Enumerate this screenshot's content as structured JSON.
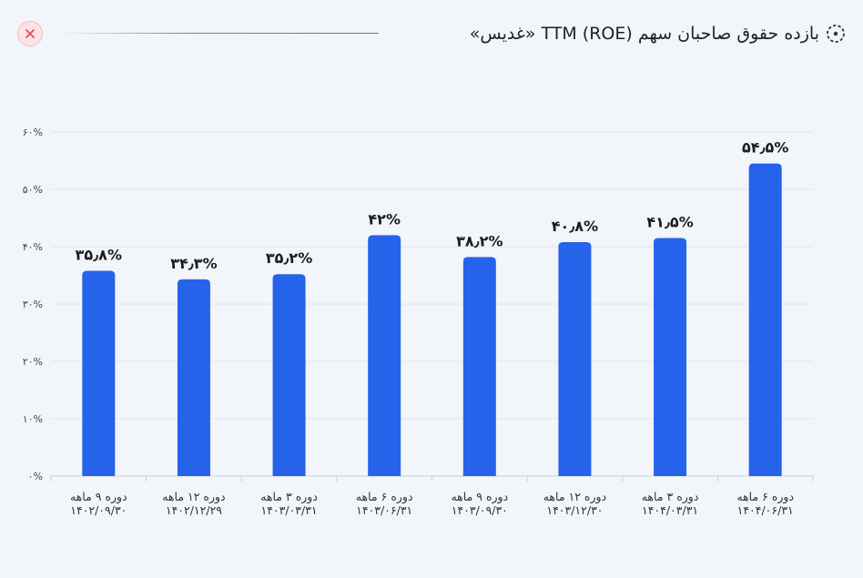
{
  "header": {
    "title": "بازده حقوق صاحبان سهم TTM (ROE) «غدیس»",
    "close_icon": "close-icon",
    "title_icon": "dotted-circle-icon"
  },
  "colors": {
    "bar": "#2563eb",
    "background": "#f2f5fa",
    "close_bg": "#fde3e6",
    "close_icon": "#e84c5f"
  },
  "chart_data": {
    "type": "bar",
    "title": "",
    "xlabel": "",
    "ylabel": "",
    "ylim": [
      0,
      60
    ],
    "y_ticks": [
      0,
      10,
      20,
      30,
      40,
      50,
      60
    ],
    "y_tick_labels": [
      "۰%",
      "۱۰%",
      "۲۰%",
      "۳۰%",
      "۴۰%",
      "۵۰%",
      "۶۰%"
    ],
    "grid": true,
    "categories": [
      [
        "دوره ۹ ماهه",
        "۱۴۰۲/۰۹/۳۰"
      ],
      [
        "دوره ۱۲ ماهه",
        "۱۴۰۲/۱۲/۲۹"
      ],
      [
        "دوره ۳ ماهه",
        "۱۴۰۳/۰۳/۳۱"
      ],
      [
        "دوره ۶ ماهه",
        "۱۴۰۳/۰۶/۳۱"
      ],
      [
        "دوره ۹ ماهه",
        "۱۴۰۳/۰۹/۳۰"
      ],
      [
        "دوره ۱۲ ماهه",
        "۱۴۰۳/۱۲/۳۰"
      ],
      [
        "دوره ۳ ماهه",
        "۱۴۰۴/۰۳/۳۱"
      ],
      [
        "دوره ۶ ماهه",
        "۱۴۰۴/۰۶/۳۱"
      ]
    ],
    "values": [
      35.8,
      34.3,
      35.2,
      42,
      38.2,
      40.8,
      41.5,
      54.5
    ],
    "data_labels": [
      "۳۵٫۸%",
      "۳۴٫۳%",
      "۳۵٫۲%",
      "۴۲%",
      "۳۸٫۲%",
      "۴۰٫۸%",
      "۴۱٫۵%",
      "۵۴٫۵%"
    ]
  }
}
